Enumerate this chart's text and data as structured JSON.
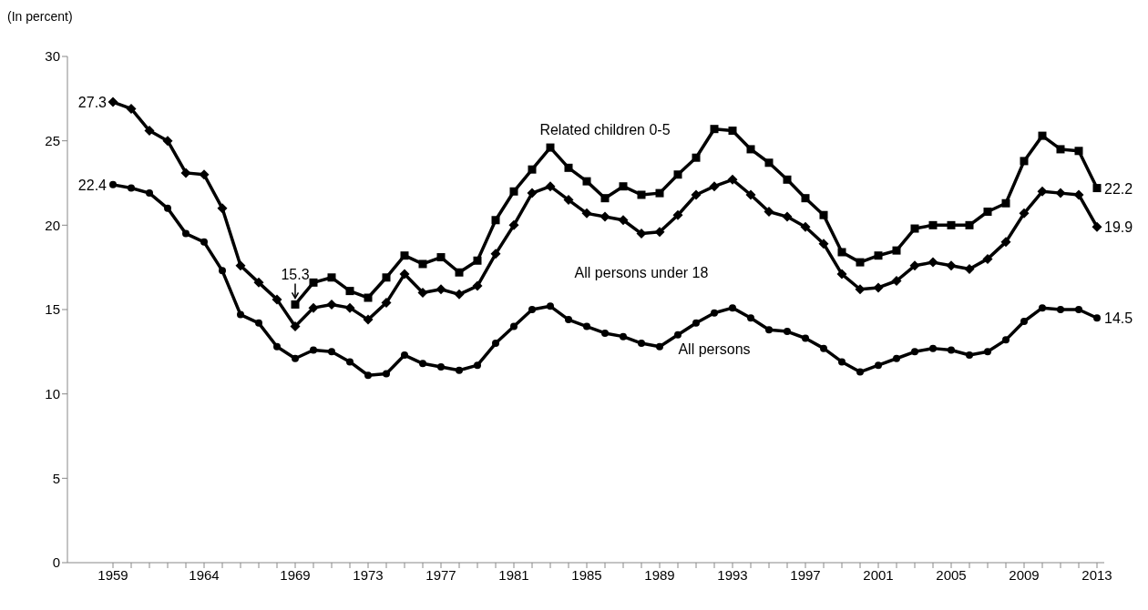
{
  "chart_data": {
    "type": "line",
    "ylabel": "(In percent)",
    "categories": [
      "1959",
      null,
      null,
      null,
      null,
      "1964",
      null,
      null,
      null,
      null,
      "1969",
      null,
      null,
      null,
      "1973",
      null,
      null,
      null,
      "1977",
      null,
      null,
      null,
      "1981",
      null,
      null,
      null,
      "1985",
      null,
      null,
      null,
      "1989",
      null,
      null,
      null,
      "1993",
      null,
      null,
      null,
      "1997",
      null,
      null,
      null,
      "2001",
      null,
      null,
      null,
      "2005",
      null,
      null,
      null,
      "2009",
      null,
      null,
      null,
      "2013"
    ],
    "series": [
      {
        "name": "Related children 0-5",
        "color": "#000000",
        "marker": "square",
        "values": [
          null,
          null,
          null,
          null,
          null,
          null,
          null,
          null,
          null,
          null,
          15.3,
          16.6,
          16.9,
          16.1,
          15.7,
          16.9,
          18.2,
          17.7,
          18.1,
          17.2,
          17.9,
          20.3,
          22.0,
          23.3,
          24.6,
          23.4,
          22.6,
          21.6,
          22.3,
          21.8,
          21.9,
          23.0,
          24.0,
          25.7,
          25.6,
          24.5,
          23.7,
          22.7,
          21.6,
          20.6,
          18.4,
          17.8,
          18.2,
          18.5,
          19.8,
          20.0,
          20.0,
          20.0,
          20.8,
          21.3,
          23.8,
          25.3,
          24.5,
          24.4,
          22.2
        ],
        "value_labels": [
          null,
          null,
          null,
          null,
          null,
          null,
          null,
          null,
          null,
          null,
          "15.3",
          null,
          null,
          null,
          null,
          null,
          null,
          null,
          null,
          null,
          null,
          null,
          null,
          null,
          null,
          null,
          null,
          null,
          null,
          null,
          null,
          null,
          null,
          null,
          null,
          null,
          null,
          null,
          null,
          null,
          null,
          null,
          null,
          null,
          null,
          null,
          null,
          null,
          null,
          null,
          null,
          null,
          null,
          null,
          "22.2"
        ]
      },
      {
        "name": "All persons under 18",
        "color": "#000000",
        "marker": "diamond",
        "values": [
          27.3,
          26.9,
          25.6,
          25.0,
          23.1,
          23.0,
          21.0,
          17.6,
          16.6,
          15.6,
          14.0,
          15.1,
          15.3,
          15.1,
          14.4,
          15.4,
          17.1,
          16.0,
          16.2,
          15.9,
          16.4,
          18.3,
          20.0,
          21.9,
          22.3,
          21.5,
          20.7,
          20.5,
          20.3,
          19.5,
          19.6,
          20.6,
          21.8,
          22.3,
          22.7,
          21.8,
          20.8,
          20.5,
          19.9,
          18.9,
          17.1,
          16.2,
          16.3,
          16.7,
          17.6,
          17.8,
          17.6,
          17.4,
          18.0,
          19.0,
          20.7,
          22.0,
          21.9,
          21.8,
          19.9
        ],
        "value_labels": [
          "27.3",
          null,
          null,
          null,
          null,
          null,
          null,
          null,
          null,
          null,
          null,
          null,
          null,
          null,
          null,
          null,
          null,
          null,
          null,
          null,
          null,
          null,
          null,
          null,
          null,
          null,
          null,
          null,
          null,
          null,
          null,
          null,
          null,
          null,
          null,
          null,
          null,
          null,
          null,
          null,
          null,
          null,
          null,
          null,
          null,
          null,
          null,
          null,
          null,
          null,
          null,
          null,
          null,
          null,
          "19.9"
        ]
      },
      {
        "name": "All persons",
        "color": "#000000",
        "marker": "circle",
        "values": [
          22.4,
          22.2,
          21.9,
          21.0,
          19.5,
          19.0,
          17.3,
          14.7,
          14.2,
          12.8,
          12.1,
          12.6,
          12.5,
          11.9,
          11.1,
          11.2,
          12.3,
          11.8,
          11.6,
          11.4,
          11.7,
          13.0,
          14.0,
          15.0,
          15.2,
          14.4,
          14.0,
          13.6,
          13.4,
          13.0,
          12.8,
          13.5,
          14.2,
          14.8,
          15.1,
          14.5,
          13.8,
          13.7,
          13.3,
          12.7,
          11.9,
          11.3,
          11.7,
          12.1,
          12.5,
          12.7,
          12.6,
          12.3,
          12.5,
          13.2,
          14.3,
          15.1,
          15.0,
          15.0,
          14.5
        ],
        "value_labels": [
          "22.4",
          null,
          null,
          null,
          null,
          null,
          null,
          null,
          null,
          null,
          null,
          null,
          null,
          null,
          null,
          null,
          null,
          null,
          null,
          null,
          null,
          null,
          null,
          null,
          null,
          null,
          null,
          null,
          null,
          null,
          null,
          null,
          null,
          null,
          null,
          null,
          null,
          null,
          null,
          null,
          null,
          null,
          null,
          null,
          null,
          null,
          null,
          null,
          null,
          null,
          null,
          null,
          null,
          null,
          "14.5"
        ]
      }
    ],
    "ylim": [
      0,
      30
    ],
    "yticks": [
      0,
      5,
      10,
      15,
      20,
      25,
      30
    ],
    "grid": false,
    "legend": false
  }
}
